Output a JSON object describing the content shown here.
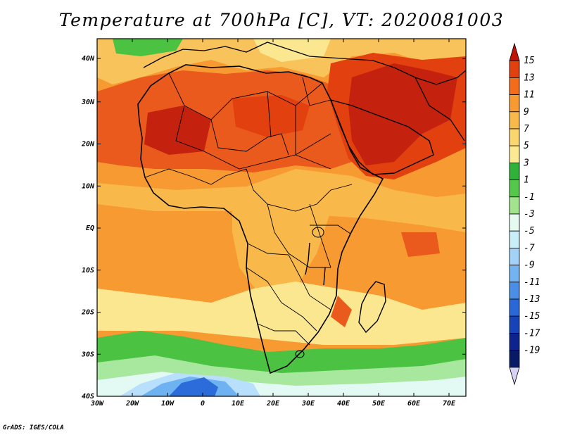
{
  "title": "Temperature at 700hPa [C], VT: 2020081003",
  "credit": "GrADS: IGES/COLA",
  "map": {
    "lat_labels": [
      "40N",
      "30N",
      "20N",
      "10N",
      "EQ",
      "10S",
      "20S",
      "30S",
      "40S"
    ],
    "lon_labels": [
      "30W",
      "20W",
      "10W",
      "0",
      "10E",
      "20E",
      "30E",
      "40E",
      "50E",
      "60E",
      "70E"
    ],
    "field_colors": {
      "hot": "#c4220e",
      "warm": "#ea5a1c",
      "mid": "#f79a32",
      "mild": "#f9c35c",
      "cool": "#fbe78f",
      "green": "#4cc243",
      "lgreen": "#a8e89e",
      "pale": "#e3f9f3",
      "lblue": "#b8dffb",
      "blue": "#6fb2f2",
      "dblue": "#2b6cda"
    }
  },
  "colorbar": {
    "labels": [
      "15",
      "13",
      "11",
      "9",
      "7",
      "5",
      "3",
      "1",
      "-1",
      "-3",
      "-5",
      "-7",
      "-9",
      "-11",
      "-13",
      "-15",
      "-17",
      "-19"
    ],
    "colors": [
      "#c1120a",
      "#e2400f",
      "#f46b1b",
      "#f79a32",
      "#f9b94a",
      "#fbd56d",
      "#fbea93",
      "#2fb13a",
      "#55c84c",
      "#a4e38e",
      "#e6faf0",
      "#c8eefa",
      "#a2d2f7",
      "#73b3f1",
      "#4a8ee6",
      "#2a68d8",
      "#1644b8",
      "#0d238e",
      "#081a66",
      "#d6d2f4"
    ]
  }
}
